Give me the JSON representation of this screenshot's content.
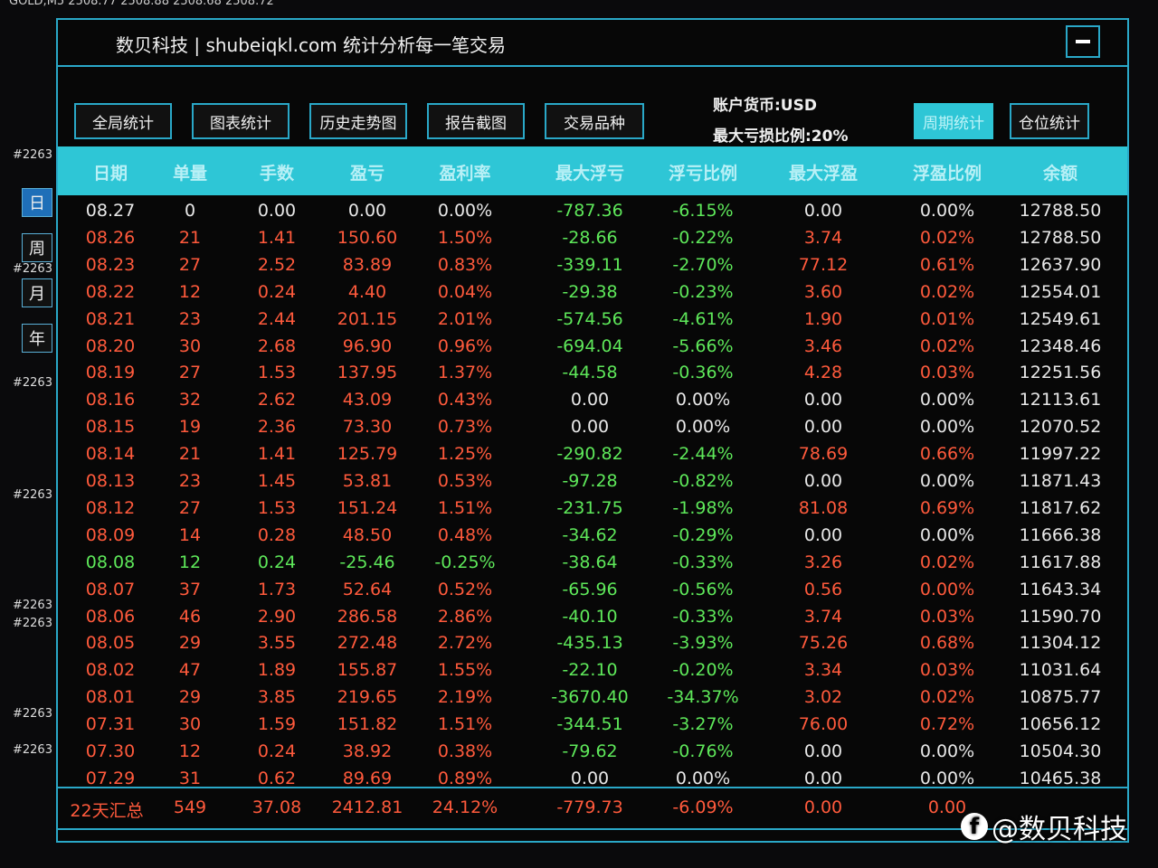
{
  "top_strip": "GOLD,M5  2508.77  2508.88  2508.68  2508.72",
  "side": {
    "tags": [
      "#2263",
      "#2263",
      "#2263",
      "#2263",
      "#2263",
      "#2263",
      "#2263",
      "#2263"
    ],
    "periods": [
      "日",
      "周",
      "月",
      "年"
    ],
    "active_period": "日"
  },
  "window": {
    "title": "数贝科技 | shubeiqkl.com 统计分析每一笔交易",
    "buttons": [
      "全局统计",
      "图表统计",
      "历史走势图",
      "报告截图",
      "交易品种",
      "周期统计",
      "仓位统计"
    ],
    "active_button": "周期统计",
    "account_currency": "账户货币:USD",
    "max_loss_ratio": "最大亏损比例:20%"
  },
  "table": {
    "columns": [
      "日期",
      "单量",
      "手数",
      "盈亏",
      "盈利率",
      "最大浮亏",
      "浮亏比例",
      "最大浮盈",
      "浮盈比例",
      "余额"
    ],
    "rows": [
      [
        "08.27",
        "0",
        "0.00",
        "0.00",
        "0.00%",
        "-787.36",
        "-6.15%",
        "0.00",
        "0.00%",
        "12788.50"
      ],
      [
        "08.26",
        "21",
        "1.41",
        "150.60",
        "1.50%",
        "-28.66",
        "-0.22%",
        "3.74",
        "0.02%",
        "12788.50"
      ],
      [
        "08.23",
        "27",
        "2.52",
        "83.89",
        "0.83%",
        "-339.11",
        "-2.70%",
        "77.12",
        "0.61%",
        "12637.90"
      ],
      [
        "08.22",
        "12",
        "0.24",
        "4.40",
        "0.04%",
        "-29.38",
        "-0.23%",
        "3.60",
        "0.02%",
        "12554.01"
      ],
      [
        "08.21",
        "23",
        "2.44",
        "201.15",
        "2.01%",
        "-574.56",
        "-4.61%",
        "1.90",
        "0.01%",
        "12549.61"
      ],
      [
        "08.20",
        "30",
        "2.68",
        "96.90",
        "0.96%",
        "-694.04",
        "-5.66%",
        "3.46",
        "0.02%",
        "12348.46"
      ],
      [
        "08.19",
        "27",
        "1.53",
        "137.95",
        "1.37%",
        "-44.58",
        "-0.36%",
        "4.28",
        "0.03%",
        "12251.56"
      ],
      [
        "08.16",
        "32",
        "2.62",
        "43.09",
        "0.43%",
        "0.00",
        "0.00%",
        "0.00",
        "0.00%",
        "12113.61"
      ],
      [
        "08.15",
        "19",
        "2.36",
        "73.30",
        "0.73%",
        "0.00",
        "0.00%",
        "0.00",
        "0.00%",
        "12070.52"
      ],
      [
        "08.14",
        "21",
        "1.41",
        "125.79",
        "1.25%",
        "-290.82",
        "-2.44%",
        "78.69",
        "0.66%",
        "11997.22"
      ],
      [
        "08.13",
        "23",
        "1.45",
        "53.81",
        "0.53%",
        "-97.28",
        "-0.82%",
        "0.00",
        "0.00%",
        "11871.43"
      ],
      [
        "08.12",
        "27",
        "1.53",
        "151.24",
        "1.51%",
        "-231.75",
        "-1.98%",
        "81.08",
        "0.69%",
        "11817.62"
      ],
      [
        "08.09",
        "14",
        "0.28",
        "48.50",
        "0.48%",
        "-34.62",
        "-0.29%",
        "0.00",
        "0.00%",
        "11666.38"
      ],
      [
        "08.08",
        "12",
        "0.24",
        "-25.46",
        "-0.25%",
        "-38.64",
        "-0.33%",
        "3.26",
        "0.02%",
        "11617.88"
      ],
      [
        "08.07",
        "37",
        "1.73",
        "52.64",
        "0.52%",
        "-65.96",
        "-0.56%",
        "0.56",
        "0.00%",
        "11643.34"
      ],
      [
        "08.06",
        "46",
        "2.90",
        "286.58",
        "2.86%",
        "-40.10",
        "-0.33%",
        "3.74",
        "0.03%",
        "11590.70"
      ],
      [
        "08.05",
        "29",
        "3.55",
        "272.48",
        "2.72%",
        "-435.13",
        "-3.93%",
        "75.26",
        "0.68%",
        "11304.12"
      ],
      [
        "08.02",
        "47",
        "1.89",
        "155.87",
        "1.55%",
        "-22.10",
        "-0.20%",
        "3.34",
        "0.03%",
        "11031.64"
      ],
      [
        "08.01",
        "29",
        "3.85",
        "219.65",
        "2.19%",
        "-3670.40",
        "-34.37%",
        "3.02",
        "0.02%",
        "10875.77"
      ],
      [
        "07.31",
        "30",
        "1.59",
        "151.82",
        "1.51%",
        "-344.51",
        "-3.27%",
        "76.00",
        "0.72%",
        "10656.12"
      ],
      [
        "07.30",
        "12",
        "0.24",
        "38.92",
        "0.38%",
        "-79.62",
        "-0.76%",
        "0.00",
        "0.00%",
        "10504.30"
      ],
      [
        "07.29",
        "31",
        "0.62",
        "89.69",
        "0.89%",
        "0.00",
        "0.00%",
        "0.00",
        "0.00%",
        "10465.38"
      ]
    ],
    "summary": [
      "22天汇总",
      "549",
      "37.08",
      "2412.81",
      "24.12%",
      "-779.73",
      "-6.09%",
      "0.00",
      "0.00"
    ]
  },
  "colors": {
    "accent": "#2ec6d6",
    "profit": "#ff5a3c",
    "loss": "#5ee85a",
    "neutral": "#e8e8e8"
  },
  "watermark": "@数贝科技"
}
